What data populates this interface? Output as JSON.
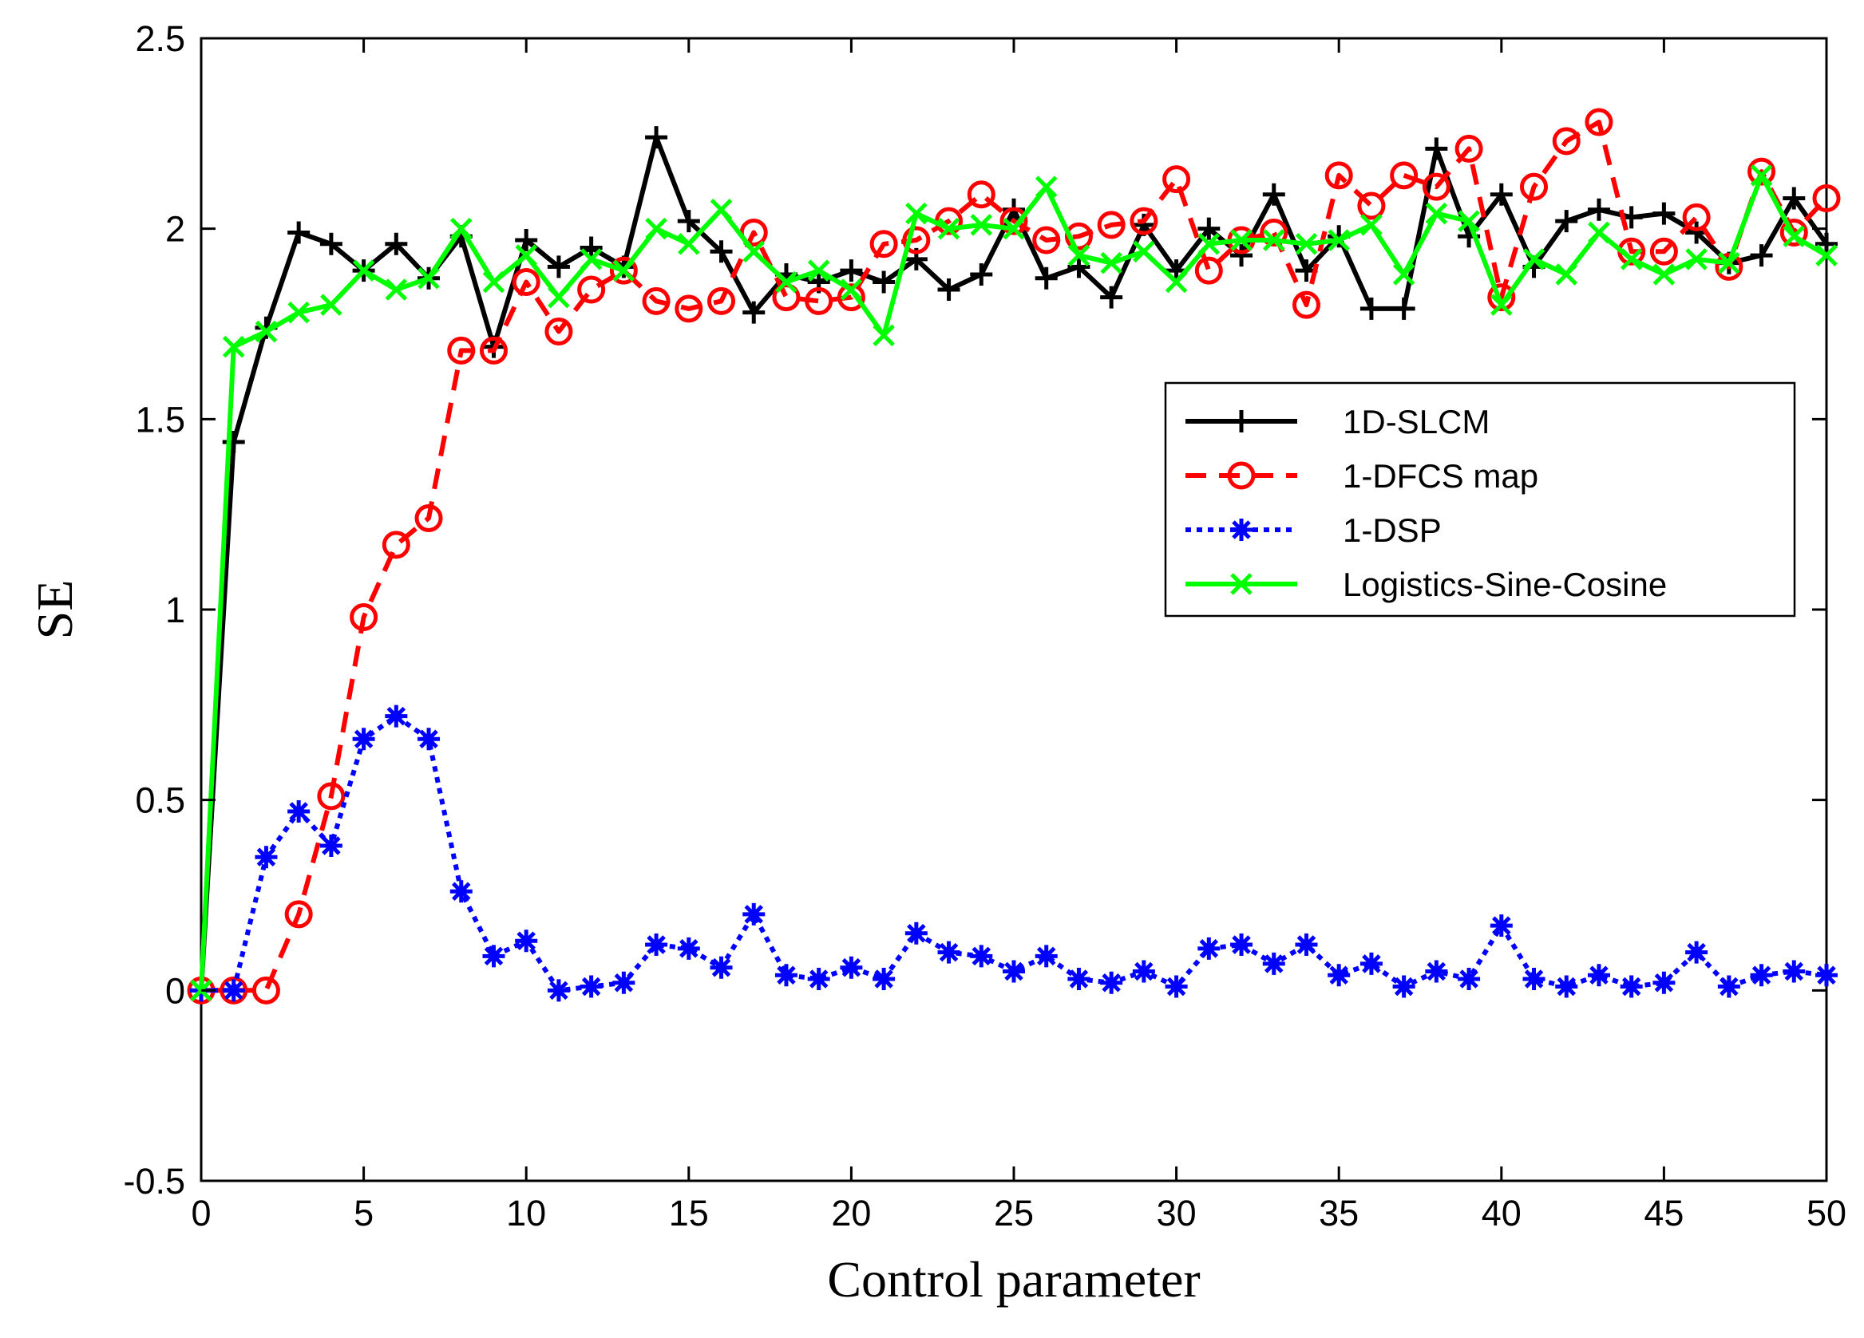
{
  "chart_data": {
    "type": "line",
    "title": "",
    "xlabel": "Control parameter",
    "ylabel": "SE",
    "xlim": [
      0,
      50
    ],
    "ylim": [
      -0.5,
      2.5
    ],
    "xticks": [
      0,
      5,
      10,
      15,
      20,
      25,
      30,
      35,
      40,
      45,
      50
    ],
    "yticks": [
      -0.5,
      0,
      0.5,
      1,
      1.5,
      2,
      2.5
    ],
    "xtick_labels": [
      "0",
      "5",
      "10",
      "15",
      "20",
      "25",
      "30",
      "35",
      "40",
      "45",
      "50"
    ],
    "ytick_labels": [
      "-0.5",
      "0",
      "0.5",
      "1",
      "1.5",
      "2",
      "2.5"
    ],
    "grid": false,
    "legend_position": "right, upper-middle",
    "x": [
      0,
      1,
      2,
      3,
      4,
      5,
      6,
      7,
      8,
      9,
      10,
      11,
      12,
      13,
      14,
      15,
      16,
      17,
      18,
      19,
      20,
      21,
      22,
      23,
      24,
      25,
      26,
      27,
      28,
      29,
      30,
      31,
      32,
      33,
      34,
      35,
      36,
      37,
      38,
      39,
      40,
      41,
      42,
      43,
      44,
      45,
      46,
      47,
      48,
      49,
      50
    ],
    "series": [
      {
        "name": "1D-SLCM",
        "color": "#000000",
        "line": "solid",
        "marker": "plus",
        "values": [
          0,
          1.44,
          1.74,
          1.99,
          1.96,
          1.89,
          1.96,
          1.87,
          1.98,
          1.69,
          1.97,
          1.9,
          1.95,
          1.9,
          2.24,
          2.02,
          1.94,
          1.78,
          1.88,
          1.86,
          1.89,
          1.86,
          1.92,
          1.84,
          1.88,
          2.05,
          1.87,
          1.9,
          1.82,
          2.01,
          1.89,
          2.0,
          1.93,
          2.09,
          1.89,
          1.98,
          1.79,
          1.79,
          2.21,
          1.98,
          2.09,
          1.9,
          2.02,
          2.05,
          2.03,
          2.04,
          1.99,
          1.91,
          1.93,
          2.08,
          1.96
        ]
      },
      {
        "name": "1-DFCS map",
        "color": "#ff0000",
        "line": "dashed",
        "marker": "circle",
        "values": [
          0,
          0,
          0,
          0.2,
          0.51,
          0.98,
          1.17,
          1.24,
          1.68,
          1.68,
          1.86,
          1.73,
          1.84,
          1.89,
          1.81,
          1.79,
          1.81,
          1.99,
          1.82,
          1.81,
          1.82,
          1.96,
          1.97,
          2.02,
          2.09,
          2.02,
          1.97,
          1.98,
          2.01,
          2.02,
          2.13,
          1.89,
          1.97,
          1.99,
          1.8,
          2.14,
          2.06,
          2.14,
          2.11,
          2.21,
          1.82,
          2.11,
          2.23,
          2.28,
          1.94,
          1.94,
          2.03,
          1.9,
          2.15,
          1.99,
          2.08
        ]
      },
      {
        "name": "1-DSP",
        "color": "#0000ff",
        "line": "dotted",
        "marker": "asterisk",
        "values": [
          0,
          0,
          0.35,
          0.47,
          0.38,
          0.66,
          0.72,
          0.66,
          0.26,
          0.09,
          0.13,
          0,
          0.01,
          0.02,
          0.12,
          0.11,
          0.06,
          0.2,
          0.04,
          0.03,
          0.06,
          0.03,
          0.15,
          0.1,
          0.09,
          0.05,
          0.09,
          0.03,
          0.02,
          0.05,
          0.01,
          0.11,
          0.12,
          0.07,
          0.12,
          0.04,
          0.07,
          0.01,
          0.05,
          0.03,
          0.17,
          0.03,
          0.01,
          0.04,
          0.01,
          0.02,
          0.1,
          0.01,
          0.04,
          0.05,
          0.04
        ]
      },
      {
        "name": "Logistics-Sine-Cosine",
        "color": "#00ff00",
        "line": "solid",
        "marker": "x",
        "values": [
          0,
          1.69,
          1.73,
          1.78,
          1.8,
          1.89,
          1.84,
          1.87,
          2.0,
          1.86,
          1.93,
          1.82,
          1.92,
          1.89,
          2.0,
          1.96,
          2.05,
          1.94,
          1.86,
          1.89,
          1.84,
          1.72,
          2.04,
          2.0,
          2.01,
          2.0,
          2.11,
          1.93,
          1.91,
          1.94,
          1.86,
          1.96,
          1.97,
          1.97,
          1.96,
          1.97,
          2.01,
          1.88,
          2.04,
          2.02,
          1.8,
          1.92,
          1.88,
          1.99,
          1.92,
          1.88,
          1.92,
          1.91,
          2.14,
          1.98,
          1.93
        ]
      }
    ]
  }
}
